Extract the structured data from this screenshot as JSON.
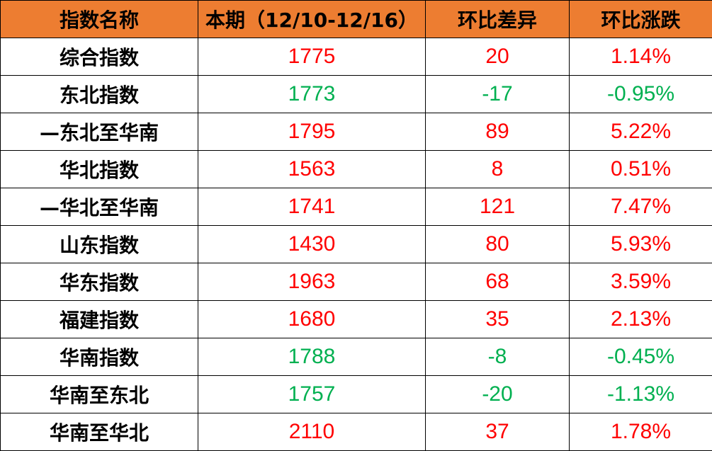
{
  "colors": {
    "header_bg": "#ED7D31",
    "up": "#FF0000",
    "down": "#00B050"
  },
  "chart_data": {
    "type": "table",
    "columns": [
      "指数名称",
      "本期（12/10-12/16）",
      "环比差异",
      "环比涨跌"
    ],
    "rows": [
      {
        "name": "综合指数",
        "current": "1775",
        "diff": "20",
        "change": "1.14%",
        "dir": "up"
      },
      {
        "name": "东北指数",
        "current": "1773",
        "diff": "-17",
        "change": "-0.95%",
        "dir": "down"
      },
      {
        "name": "—东北至华南",
        "current": "1795",
        "diff": "89",
        "change": "5.22%",
        "dir": "up"
      },
      {
        "name": "华北指数",
        "current": "1563",
        "diff": "8",
        "change": "0.51%",
        "dir": "up"
      },
      {
        "name": "—华北至华南",
        "current": "1741",
        "diff": "121",
        "change": "7.47%",
        "dir": "up"
      },
      {
        "name": "山东指数",
        "current": "1430",
        "diff": "80",
        "change": "5.93%",
        "dir": "up"
      },
      {
        "name": "华东指数",
        "current": "1963",
        "diff": "68",
        "change": "3.59%",
        "dir": "up"
      },
      {
        "name": "福建指数",
        "current": "1680",
        "diff": "35",
        "change": "2.13%",
        "dir": "up"
      },
      {
        "name": "华南指数",
        "current": "1788",
        "diff": "-8",
        "change": "-0.45%",
        "dir": "down"
      },
      {
        "name": "华南至东北",
        "current": "1757",
        "diff": "-20",
        "change": "-1.13%",
        "dir": "down"
      },
      {
        "name": "华南至华北",
        "current": "2110",
        "diff": "37",
        "change": "1.78%",
        "dir": "up"
      }
    ]
  }
}
